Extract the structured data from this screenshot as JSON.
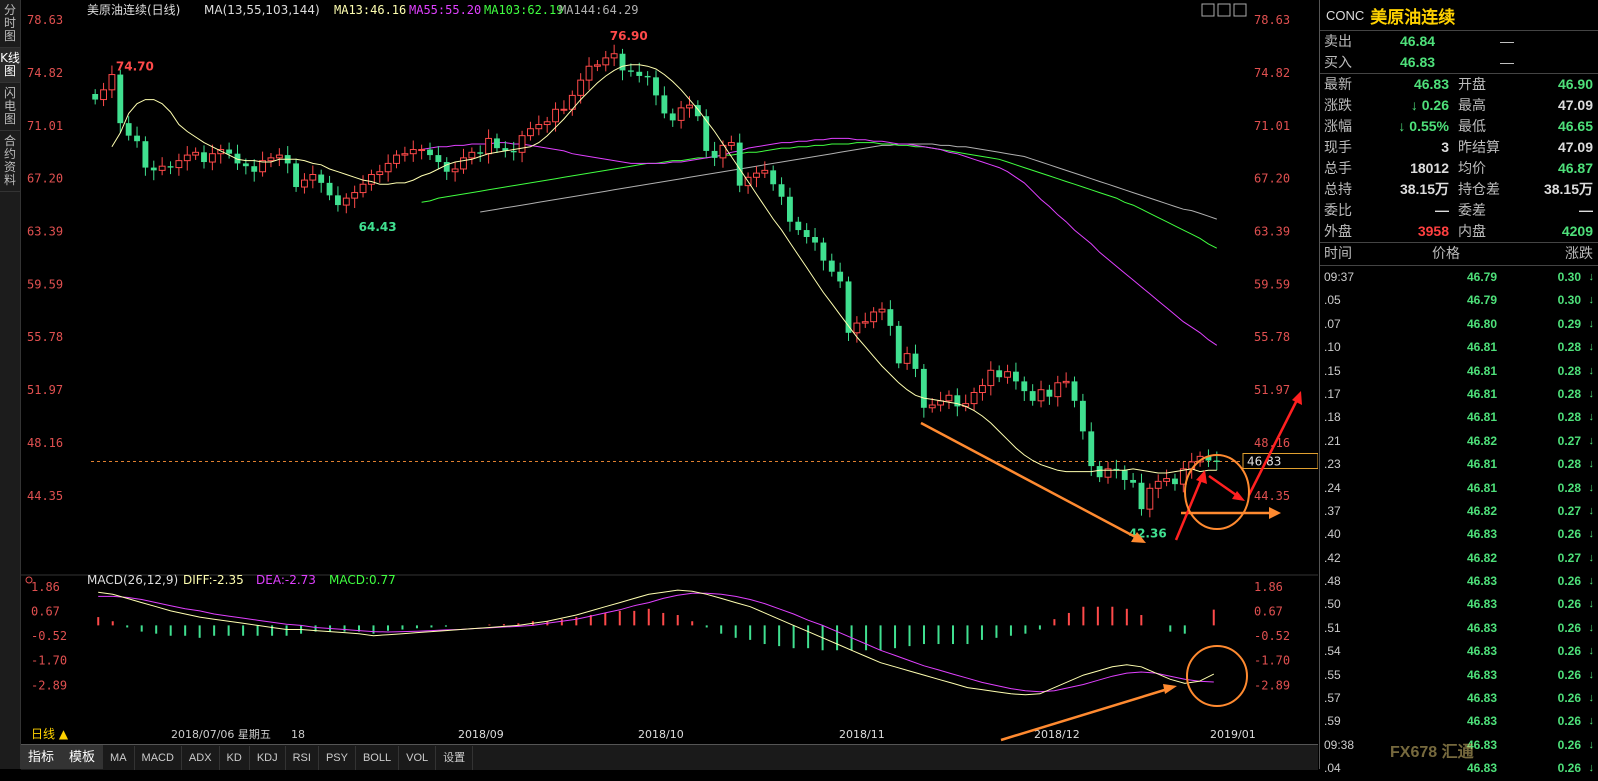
{
  "left_tabs": [
    "分时图",
    "K线图",
    "闪电图",
    "合约资料"
  ],
  "chart_data": [
    {
      "type": "candlestick",
      "title": "美原油连续(日线)",
      "ma_label": "MA(13,55,103,144)",
      "ma_values": [
        {
          "name": "MA13",
          "value": "46.16",
          "color": "#ffffb0"
        },
        {
          "name": "MA55",
          "value": "55.20",
          "color": "#e040ff"
        },
        {
          "name": "MA103",
          "value": "62.19",
          "color": "#40ff40"
        },
        {
          "name": "MA144",
          "value": "64.29",
          "color": "#b0b0b0"
        }
      ],
      "ylim": [
        40.6,
        78.63
      ],
      "yticks": [
        "78.63",
        "74.82",
        "71.01",
        "67.20",
        "63.39",
        "59.59",
        "55.78",
        "51.97",
        "48.16",
        "44.35"
      ],
      "xticks": [
        "2018/09",
        "2018/10",
        "2018/11",
        "2018/12",
        "2019/01"
      ],
      "cursor_date": "2018/07/06 星期五",
      "cursor_suffix": "18",
      "last_price": "46.83",
      "annotations": [
        {
          "text": "74.70",
          "value": 74.7
        },
        {
          "text": "64.43",
          "value": 64.43
        },
        {
          "text": "76.90",
          "value": 76.9
        },
        {
          "text": "42.36",
          "value": 42.36
        }
      ],
      "closes": [
        72.9,
        73.6,
        74.7,
        71.2,
        70.3,
        69.9,
        68.0,
        67.8,
        68.1,
        68.0,
        68.5,
        68.9,
        69.1,
        68.4,
        69.0,
        69.3,
        69.0,
        68.3,
        68.1,
        67.7,
        68.5,
        68.7,
        68.9,
        68.3,
        66.6,
        67.1,
        67.5,
        66.9,
        66.0,
        65.3,
        65.8,
        66.2,
        66.8,
        67.5,
        67.7,
        68.3,
        68.9,
        69.0,
        69.3,
        69.3,
        68.9,
        68.4,
        67.7,
        67.9,
        68.7,
        69.1,
        69.0,
        70.1,
        69.4,
        69.2,
        69.1,
        70.3,
        70.8,
        71.1,
        71.3,
        72.2,
        72.2,
        73.2,
        74.3,
        75.3,
        75.4,
        75.9,
        76.2,
        75.0,
        74.9,
        74.6,
        74.5,
        73.2,
        71.9,
        71.4,
        72.3,
        72.5,
        71.7,
        69.2,
        68.7,
        69.6,
        69.8,
        66.7,
        67.3,
        67.6,
        67.8,
        66.8,
        65.9,
        64.1,
        63.5,
        63.0,
        62.6,
        61.3,
        60.5,
        59.8,
        56.1,
        56.8,
        56.9,
        57.6,
        57.8,
        56.6,
        53.9,
        54.6,
        53.5,
        50.7,
        50.9,
        51.2,
        51.6,
        50.8,
        51.0,
        51.8,
        52.3,
        53.4,
        52.9,
        53.3,
        52.6,
        51.9,
        51.2,
        52.0,
        51.5,
        52.5,
        52.6,
        51.2,
        49.0,
        46.5,
        45.7,
        46.3,
        46.2,
        45.5,
        45.3,
        43.4,
        44.9,
        45.4,
        45.6,
        45.2,
        46.3,
        46.8,
        47.2,
        46.9,
        46.8
      ],
      "ma13": [
        69.5,
        70.5,
        71.9,
        72.6,
        72.9,
        72.9,
        72.6,
        72.0,
        71.1,
        70.6,
        70.2,
        69.8,
        69.5,
        69.2,
        68.9,
        68.6,
        68.5,
        68.5,
        68.4,
        68.4,
        68.6,
        68.6,
        68.6,
        68.5,
        68.3,
        68.2,
        67.9,
        67.7,
        67.5,
        67.3,
        67.1,
        67.0,
        66.8,
        66.8,
        66.9,
        66.9,
        67.1,
        67.4,
        67.6,
        67.9,
        68.2,
        68.4,
        68.5,
        68.6,
        68.8,
        69.0,
        69.1,
        69.2,
        69.3,
        69.4,
        69.5,
        69.8,
        70.3,
        70.9,
        71.5,
        72.2,
        72.9,
        73.5,
        74.1,
        74.6,
        75.0,
        75.3,
        75.4,
        75.4,
        75.3,
        75.1,
        74.7,
        74.2,
        73.6,
        72.9,
        72.2,
        71.4,
        70.6,
        69.7,
        68.8,
        67.9,
        67.0,
        66.1,
        65.2,
        64.3,
        63.5,
        62.6,
        61.7,
        60.8,
        59.9,
        59.0,
        58.2,
        57.4,
        56.6,
        55.8,
        55.1,
        54.4,
        53.7,
        53.1,
        52.5,
        52.0,
        51.6,
        51.4,
        51.3,
        51.2,
        51.1,
        51.0,
        50.8,
        50.5,
        50.1,
        49.6,
        49.0,
        48.4,
        47.8,
        47.3,
        46.9,
        46.6,
        46.4,
        46.2,
        46.1,
        46.1,
        46.1,
        46.1,
        46.2,
        46.2,
        46.2,
        46.2,
        46.3,
        46.2,
        46.1,
        46.0,
        46.0,
        46.1,
        46.2,
        46.3,
        46.1,
        46.2,
        46.2
      ],
      "ma55": [
        69.3,
        69.4,
        69.5,
        69.5,
        69.6,
        69.6,
        69.7,
        69.7,
        69.7,
        69.8,
        69.8,
        69.7,
        69.7,
        69.6,
        69.5,
        69.4,
        69.3,
        69.2,
        69.0,
        68.9,
        68.8,
        68.7,
        68.6,
        68.5,
        68.4,
        68.3,
        68.3,
        68.3,
        68.3,
        68.3,
        68.4,
        68.4,
        68.5,
        68.6,
        68.7,
        68.8,
        68.9,
        69.1,
        69.2,
        69.4,
        69.5,
        69.6,
        69.7,
        69.8,
        69.8,
        69.9,
        69.9,
        70.0,
        70.0,
        70.1,
        70.1,
        70.1,
        70.0,
        70.0,
        69.9,
        69.9,
        69.8,
        69.7,
        69.7,
        69.6,
        69.5,
        69.4,
        69.3,
        69.1,
        69.0,
        68.8,
        68.6,
        68.4,
        68.2,
        68.0,
        67.7,
        67.3,
        66.9,
        66.3,
        65.7,
        65.2,
        64.6,
        64.1,
        63.5,
        63.0,
        62.5,
        61.9,
        61.4,
        60.9,
        60.4,
        59.9,
        59.4,
        58.9,
        58.4,
        57.9,
        57.4,
        56.9,
        56.5,
        56.1,
        55.6,
        55.2
      ],
      "ma103": [
        65.5,
        65.6,
        65.8,
        65.9,
        66.0,
        66.1,
        66.2,
        66.3,
        66.4,
        66.5,
        66.6,
        66.7,
        66.8,
        66.9,
        67.0,
        67.1,
        67.2,
        67.3,
        67.4,
        67.5,
        67.6,
        67.7,
        67.8,
        67.9,
        68.0,
        68.1,
        68.2,
        68.3,
        68.3,
        68.4,
        68.5,
        68.5,
        68.6,
        68.7,
        68.7,
        68.8,
        68.9,
        68.9,
        69.0,
        69.1,
        69.1,
        69.2,
        69.3,
        69.4,
        69.4,
        69.5,
        69.5,
        69.6,
        69.6,
        69.7,
        69.7,
        69.7,
        69.8,
        69.8,
        69.8,
        69.7,
        69.7,
        69.6,
        69.6,
        69.5,
        69.5,
        69.4,
        69.3,
        69.2,
        69.1,
        69.0,
        68.9,
        68.8,
        68.7,
        68.6,
        68.4,
        68.2,
        68.0,
        67.8,
        67.6,
        67.4,
        67.2,
        67.0,
        66.8,
        66.6,
        66.4,
        66.2,
        66.0,
        65.8,
        65.5,
        65.3,
        65.0,
        64.7,
        64.4,
        64.1,
        63.8,
        63.5,
        63.2,
        62.9,
        62.5,
        62.19
      ],
      "ma144": [
        64.8,
        64.9,
        65.0,
        65.1,
        65.2,
        65.3,
        65.4,
        65.5,
        65.6,
        65.7,
        65.8,
        65.9,
        66.0,
        66.1,
        66.2,
        66.3,
        66.4,
        66.5,
        66.6,
        66.7,
        66.8,
        66.9,
        67.0,
        67.1,
        67.2,
        67.3,
        67.4,
        67.5,
        67.6,
        67.7,
        67.8,
        67.9,
        68.0,
        68.1,
        68.2,
        68.3,
        68.4,
        68.5,
        68.6,
        68.7,
        68.8,
        68.9,
        69.0,
        69.1,
        69.2,
        69.3,
        69.4,
        69.5,
        69.6,
        69.6,
        69.7,
        69.7,
        69.7,
        69.7,
        69.7,
        69.6,
        69.6,
        69.5,
        69.5,
        69.4,
        69.3,
        69.2,
        69.1,
        69.0,
        68.9,
        68.8,
        68.6,
        68.4,
        68.2,
        68.0,
        67.8,
        67.6,
        67.4,
        67.2,
        67.0,
        66.8,
        66.6,
        66.4,
        66.2,
        66.0,
        65.8,
        65.6,
        65.4,
        65.2,
        65.0,
        64.9,
        64.7,
        64.5,
        64.29
      ]
    },
    {
      "type": "macd",
      "label": "MACD(26,12,9)",
      "diff_label": "DIFF:-2.35",
      "dea_label": "DEA:-2.73",
      "macd_label": "MACD:0.77",
      "ylim": [
        -3.6,
        1.9
      ],
      "yticks": [
        "1.86",
        "0.67",
        "-0.52",
        "-1.70",
        "-2.89"
      ],
      "diff": [
        1.6,
        1.5,
        1.3,
        1.1,
        0.9,
        0.7,
        0.55,
        0.4,
        0.3,
        0.2,
        0.1,
        0.0,
        -0.1,
        -0.2,
        -0.2,
        -0.25,
        -0.3,
        -0.35,
        -0.4,
        -0.5,
        -0.45,
        -0.4,
        -0.35,
        -0.3,
        -0.25,
        -0.2,
        -0.15,
        -0.1,
        -0.05,
        0.0,
        0.1,
        0.2,
        0.35,
        0.5,
        0.7,
        0.9,
        1.1,
        1.3,
        1.5,
        1.6,
        1.7,
        1.65,
        1.5,
        1.3,
        1.1,
        0.9,
        0.6,
        0.3,
        0.0,
        -0.3,
        -0.6,
        -0.9,
        -1.2,
        -1.5,
        -1.8,
        -2.0,
        -2.2,
        -2.4,
        -2.6,
        -2.8,
        -3.0,
        -3.1,
        -3.2,
        -3.3,
        -3.35,
        -3.3,
        -3.0,
        -2.7,
        -2.4,
        -2.2,
        -2.0,
        -1.9,
        -2.0,
        -2.3,
        -2.6,
        -2.8,
        -2.7,
        -2.35
      ],
      "dea": [
        1.4,
        1.4,
        1.35,
        1.25,
        1.1,
        0.95,
        0.8,
        0.7,
        0.55,
        0.45,
        0.35,
        0.25,
        0.15,
        0.05,
        0.0,
        -0.1,
        -0.15,
        -0.2,
        -0.25,
        -0.3,
        -0.32,
        -0.3,
        -0.28,
        -0.25,
        -0.22,
        -0.2,
        -0.15,
        -0.12,
        -0.08,
        -0.05,
        0.0,
        0.1,
        0.2,
        0.3,
        0.45,
        0.6,
        0.75,
        0.95,
        1.1,
        1.3,
        1.45,
        1.55,
        1.55,
        1.5,
        1.4,
        1.25,
        1.05,
        0.8,
        0.55,
        0.25,
        0.0,
        -0.3,
        -0.6,
        -0.9,
        -1.2,
        -1.45,
        -1.7,
        -1.95,
        -2.15,
        -2.35,
        -2.55,
        -2.75,
        -2.9,
        -3.05,
        -3.15,
        -3.2,
        -3.15,
        -3.0,
        -2.85,
        -2.65,
        -2.45,
        -2.3,
        -2.25,
        -2.3,
        -2.45,
        -2.6,
        -2.7,
        -2.73
      ]
    }
  ],
  "sidebar": {
    "code": "CONC",
    "name": "美原油连续",
    "sell_label": "卖出",
    "sell_price": "46.84",
    "sell_vol": "—",
    "buy_label": "买入",
    "buy_price": "46.83",
    "buy_vol": "—",
    "stats": [
      {
        "l1": "最新",
        "v1": "46.83",
        "c1": "#4ee07a",
        "l2": "开盘",
        "v2": "46.90",
        "c2": "#4ee07a"
      },
      {
        "l1": "涨跌",
        "v1": "0.26",
        "c1": "#4ee07a",
        "arrow1": "↓",
        "l2": "最高",
        "v2": "47.09",
        "c2": "#dddddd"
      },
      {
        "l1": "涨幅",
        "v1": "0.55%",
        "c1": "#4ee07a",
        "arrow1": "↓",
        "l2": "最低",
        "v2": "46.65",
        "c2": "#4ee07a"
      },
      {
        "l1": "现手",
        "v1": "3",
        "c1": "#dddddd",
        "l2": "昨结算",
        "v2": "47.09",
        "c2": "#dddddd"
      },
      {
        "l1": "总手",
        "v1": "18012",
        "c1": "#dddddd",
        "l2": "均价",
        "v2": "46.87",
        "c2": "#4ee07a"
      },
      {
        "l1": "总持",
        "v1": "38.15万",
        "c1": "#dddddd",
        "l2": "持仓差",
        "v2": "38.15万",
        "c2": "#dddddd"
      },
      {
        "l1": "委比",
        "v1": "—",
        "c1": "#dddddd",
        "l2": "委差",
        "v2": "—",
        "c2": "#dddddd"
      },
      {
        "l1": "外盘",
        "v1": "3958",
        "c1": "#ff4040",
        "l2": "内盘",
        "v2": "4209",
        "c2": "#4ee07a"
      }
    ],
    "tick_header": {
      "time": "时间",
      "price": "价格",
      "change": "涨跌"
    },
    "ticks": [
      {
        "t": "09:37",
        "p": "46.79",
        "c": "0.30"
      },
      {
        "t": ".05",
        "p": "46.79",
        "c": "0.30"
      },
      {
        "t": ".07",
        "p": "46.80",
        "c": "0.29"
      },
      {
        "t": ".10",
        "p": "46.81",
        "c": "0.28"
      },
      {
        "t": ".15",
        "p": "46.81",
        "c": "0.28"
      },
      {
        "t": ".17",
        "p": "46.81",
        "c": "0.28"
      },
      {
        "t": ".18",
        "p": "46.81",
        "c": "0.28"
      },
      {
        "t": ".21",
        "p": "46.82",
        "c": "0.27"
      },
      {
        "t": ".23",
        "p": "46.81",
        "c": "0.28"
      },
      {
        "t": ".24",
        "p": "46.81",
        "c": "0.28"
      },
      {
        "t": ".37",
        "p": "46.82",
        "c": "0.27"
      },
      {
        "t": ".40",
        "p": "46.83",
        "c": "0.26"
      },
      {
        "t": ".42",
        "p": "46.82",
        "c": "0.27"
      },
      {
        "t": ".48",
        "p": "46.83",
        "c": "0.26"
      },
      {
        "t": ".50",
        "p": "46.83",
        "c": "0.26"
      },
      {
        "t": ".51",
        "p": "46.83",
        "c": "0.26"
      },
      {
        "t": ".54",
        "p": "46.83",
        "c": "0.26"
      },
      {
        "t": ".55",
        "p": "46.83",
        "c": "0.26"
      },
      {
        "t": ".57",
        "p": "46.83",
        "c": "0.26"
      },
      {
        "t": ".59",
        "p": "46.83",
        "c": "0.26"
      },
      {
        "t": "09:38",
        "p": "46.83",
        "c": "0.26"
      },
      {
        "t": ".04",
        "p": "46.83",
        "c": "0.26"
      }
    ],
    "watermark": "FX678 汇通"
  },
  "bottom": {
    "period": "日线 ▲",
    "buttons": [
      "指标",
      "模板",
      "MA",
      "MACD",
      "ADX",
      "KD",
      "KDJ",
      "RSI",
      "PSY",
      "BOLL",
      "VOL",
      "设置"
    ]
  }
}
